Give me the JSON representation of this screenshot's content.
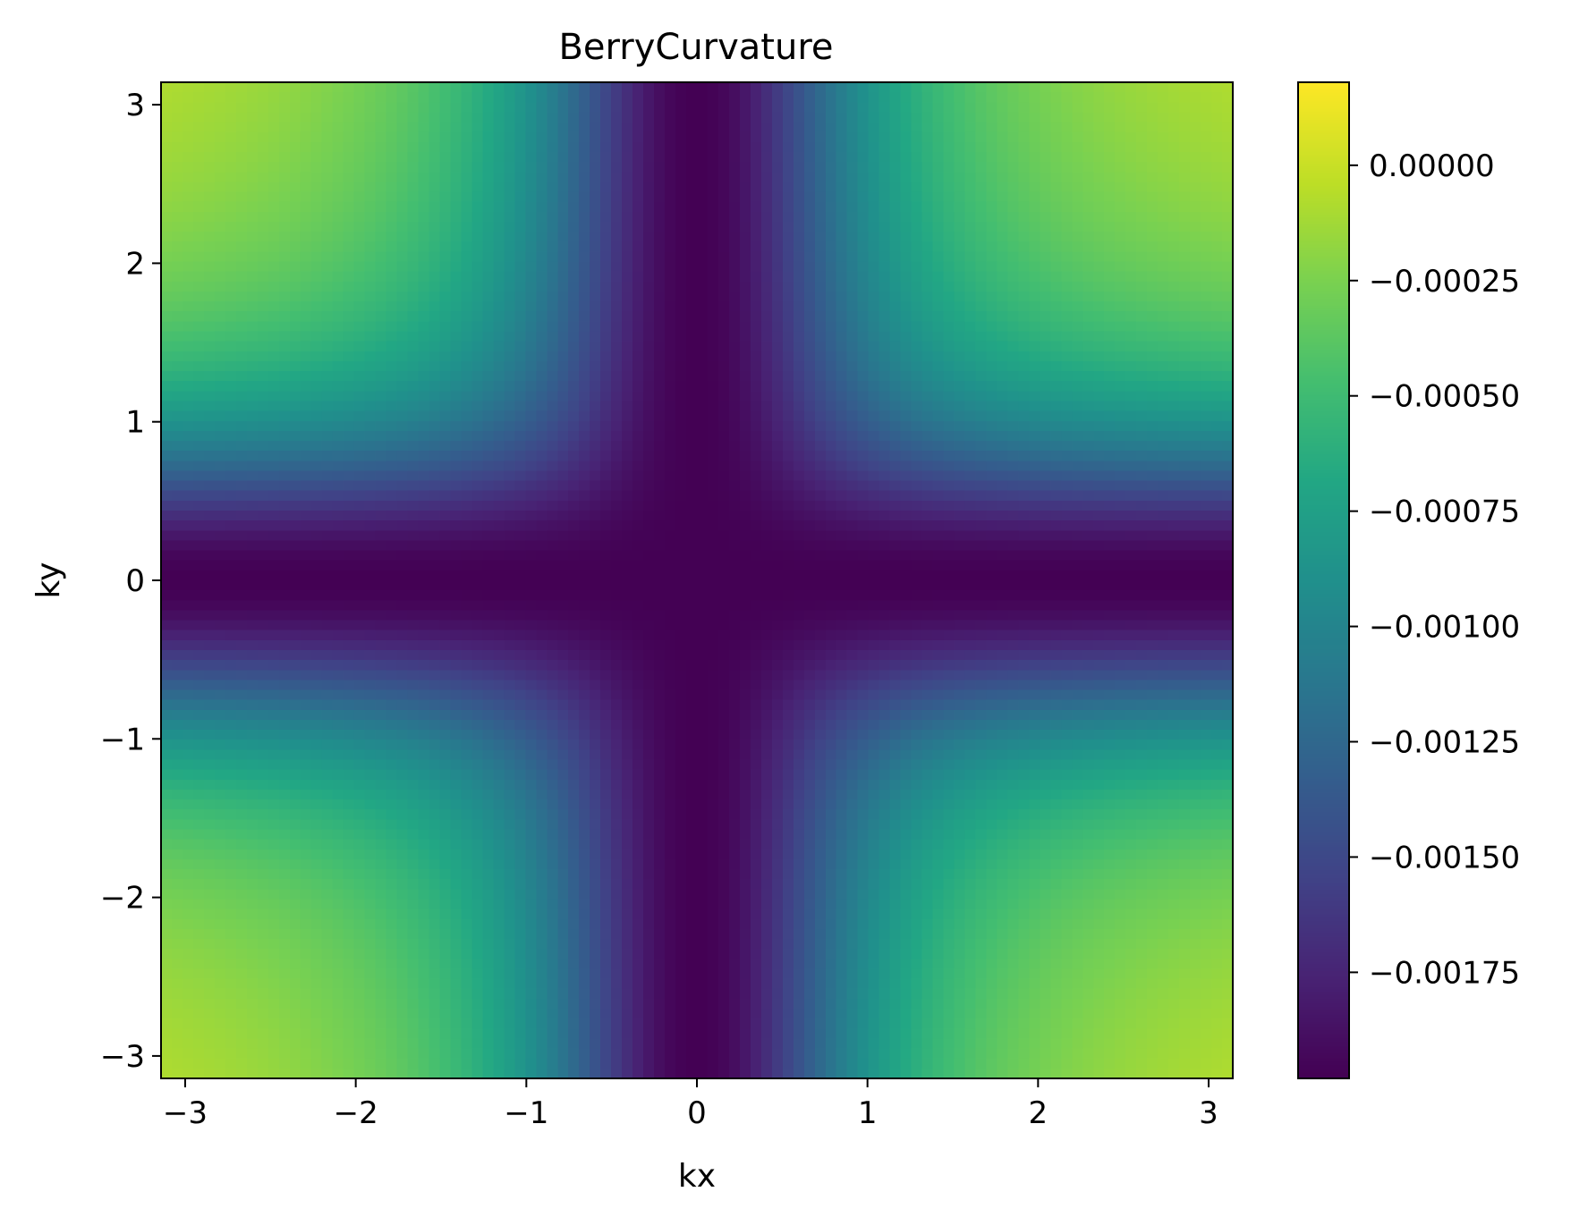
{
  "chart_data": {
    "type": "heatmap",
    "title": "BerryCurvature",
    "xlabel": "kx",
    "ylabel": "ky",
    "xlim": [
      -3.1416,
      3.1416
    ],
    "ylim": [
      -3.1416,
      3.1416
    ],
    "x_ticks": [
      -3,
      -2,
      -1,
      0,
      1,
      2,
      3
    ],
    "y_ticks": [
      -3,
      -2,
      -1,
      0,
      1,
      2,
      3
    ],
    "x_tick_labels": [
      "−3",
      "−2",
      "−1",
      "0",
      "1",
      "2",
      "3"
    ],
    "y_tick_labels": [
      "−3",
      "−2",
      "−1",
      "0",
      "1",
      "2",
      "3"
    ],
    "grid": {
      "nx": 100,
      "ny": 100
    },
    "colormap": "viridis",
    "value_range": [
      -0.00198,
      0.00018
    ],
    "colorbar": {
      "ticks": [
        0.0,
        -0.00025,
        -0.0005,
        -0.00075,
        -0.001,
        -0.00125,
        -0.0015,
        -0.00175
      ],
      "tick_labels": [
        "0.00000",
        "−0.00025",
        "−0.00050",
        "−0.00075",
        "−0.00100",
        "−0.00125",
        "−0.00150",
        "−0.00175"
      ]
    },
    "grid_lines": false
  }
}
